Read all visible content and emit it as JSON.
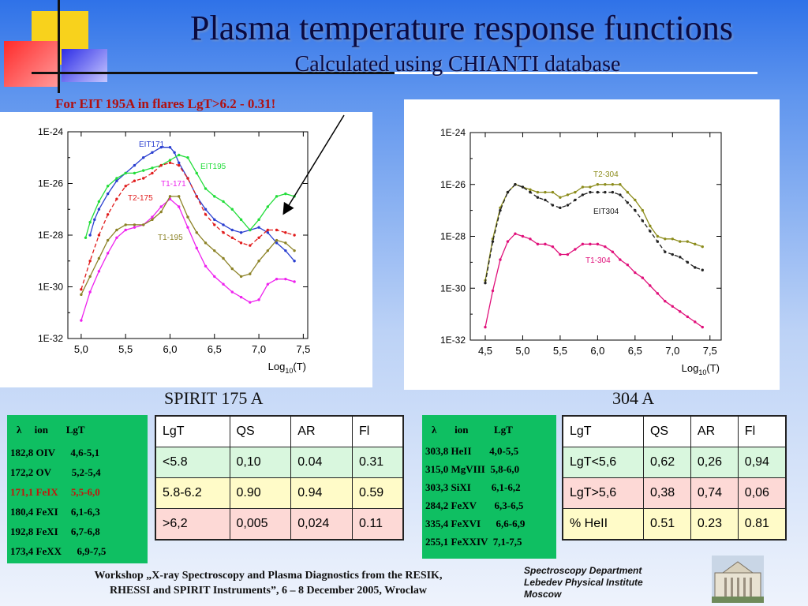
{
  "slide": {
    "title": "Plasma temperature response functions",
    "subtitle": "Calculated using CHIANTI database",
    "annotation": "For EIT 195A in flares   LgT>6.2  -   0.31!",
    "caption_left": "SPIRIT 175 A",
    "caption_right": "304 A",
    "footer_left_line1": "Workshop „X-ray Spectroscopy and Plasma Diagnostics from the RESIK,",
    "footer_left_line2": "RHESSI and SPIRIT Instruments”, 6 – 8 December 2005, Wroclaw",
    "footer_right_line1": "Spectroscopy Department",
    "footer_right_line2": "Lebedev Physical Institute",
    "footer_right_line3": "Moscow",
    "colors": {
      "accent_red": "#b01010",
      "box_green": "#0fbf62",
      "row_green": "#d9f7de",
      "row_yellow": "#fffbc8",
      "row_pink": "#fdd9d6"
    }
  },
  "left_lines": {
    "header": "λ     ion       LgT",
    "rows": [
      "182,8 OIV      4,6-5,1",
      "172,2 OV        5,2-5,4",
      "171,1 FeIX     5,5-6,0",
      "180,4 FeXI     6,1-6,3",
      "192,8 FeXI     6,7-6,8",
      "173,4 FeXX      6,9-7,5"
    ],
    "highlight_index": 2
  },
  "right_lines": {
    "header": "λ       ion          LgT",
    "rows": [
      "303,8 HeII       4,0-5,5",
      "315,0 MgVIII  5,8-6,0",
      "303,3 SiXI        6,1-6,2",
      "284,2 FeXV       6,3-6,5",
      "335,4 FeXVI      6,6-6,9",
      "255,1 FeXXIV  7,1-7,5"
    ]
  },
  "table_left": {
    "header": [
      "LgT",
      "QS",
      "AR",
      "Fl"
    ],
    "rows": [
      [
        "<5.8",
        "0,10",
        "0.04",
        "0.31"
      ],
      [
        "5.8-6.2",
        "0.90",
        "0.94",
        "0.59"
      ],
      [
        ">6,2",
        "0,005",
        "0,024",
        "0.11"
      ]
    ]
  },
  "table_right": {
    "header": [
      "LgT",
      "QS",
      "AR",
      "Fl"
    ],
    "rows": [
      [
        "LgT<5,6",
        "0,62",
        "0,26",
        "0,94"
      ],
      [
        "LgT>5,6",
        "0,38",
        "0,74",
        "0,06"
      ],
      [
        "% HeII",
        "0.51",
        "0.23",
        "0.81"
      ]
    ]
  },
  "chart_data": [
    {
      "type": "line",
      "xlabel": "Log10(T)",
      "xlim": [
        4.85,
        7.55
      ],
      "ylim": [
        -32,
        -24
      ],
      "y_log_scale": true,
      "x_ticks": [
        "5,0",
        "5,5",
        "6,0",
        "6,5",
        "7,0",
        "7,5"
      ],
      "x_tick_values": [
        5.0,
        5.5,
        6.0,
        6.5,
        7.0,
        7.5
      ],
      "y_ticks": [
        "1E-24",
        "1E-26",
        "1E-28",
        "1E-30",
        "1E-32"
      ],
      "y_tick_values": [
        -24,
        -26,
        -28,
        -30,
        -32
      ],
      "grid": false,
      "series": [
        {
          "name": "EIT171",
          "color": "#2a3fd0",
          "dash": false,
          "x": [
            5.1,
            5.15,
            5.2,
            5.3,
            5.4,
            5.5,
            5.6,
            5.7,
            5.8,
            5.9,
            6.0,
            6.05,
            6.1,
            6.2,
            6.3,
            6.4,
            6.5,
            6.6,
            6.7,
            6.8,
            6.9,
            7.0,
            7.1,
            7.2,
            7.3,
            7.4
          ],
          "y": [
            -28.0,
            -27.4,
            -27.0,
            -26.4,
            -25.9,
            -25.6,
            -25.3,
            -25.0,
            -24.8,
            -24.6,
            -24.6,
            -24.8,
            -25.2,
            -25.8,
            -26.5,
            -27.0,
            -27.4,
            -27.6,
            -27.8,
            -27.9,
            -27.8,
            -27.7,
            -27.9,
            -28.3,
            -28.6,
            -29.0
          ]
        },
        {
          "name": "EIT195",
          "color": "#22dd3a",
          "dash": false,
          "x": [
            5.05,
            5.1,
            5.2,
            5.3,
            5.4,
            5.5,
            5.6,
            5.7,
            5.8,
            5.9,
            6.0,
            6.1,
            6.2,
            6.3,
            6.4,
            6.5,
            6.6,
            6.7,
            6.8,
            6.9,
            7.0,
            7.1,
            7.2,
            7.3,
            7.4
          ],
          "y": [
            -28.1,
            -27.5,
            -26.7,
            -26.1,
            -25.8,
            -25.6,
            -25.6,
            -25.5,
            -25.4,
            -25.3,
            -25.1,
            -24.9,
            -25.0,
            -25.6,
            -26.2,
            -26.5,
            -26.7,
            -27.0,
            -27.4,
            -27.8,
            -27.4,
            -26.9,
            -26.5,
            -26.4,
            -26.5
          ]
        },
        {
          "name": "T2-175",
          "color": "#e11c1c",
          "dash": true,
          "x": [
            5.0,
            5.1,
            5.2,
            5.3,
            5.4,
            5.5,
            5.6,
            5.7,
            5.8,
            5.9,
            6.0,
            6.1,
            6.2,
            6.3,
            6.4,
            6.5,
            6.6,
            6.7,
            6.8,
            6.9,
            7.0,
            7.1,
            7.2,
            7.3,
            7.4
          ],
          "y": [
            -30.1,
            -29.0,
            -28.0,
            -27.2,
            -26.6,
            -26.1,
            -25.9,
            -25.8,
            -25.6,
            -25.3,
            -25.2,
            -25.3,
            -25.8,
            -26.5,
            -27.2,
            -27.6,
            -27.9,
            -28.1,
            -28.3,
            -28.4,
            -28.1,
            -27.8,
            -27.8,
            -27.9,
            -28.0
          ]
        },
        {
          "name": "T1-171",
          "color": "#ee22ee",
          "dash": false,
          "x": [
            5.0,
            5.1,
            5.2,
            5.3,
            5.4,
            5.5,
            5.6,
            5.7,
            5.8,
            5.9,
            6.0,
            6.1,
            6.2,
            6.3,
            6.4,
            6.5,
            6.6,
            6.7,
            6.8,
            6.9,
            7.0,
            7.1,
            7.2,
            7.3,
            7.4
          ],
          "y": [
            -31.3,
            -30.2,
            -29.4,
            -28.7,
            -28.1,
            -27.8,
            -27.7,
            -27.6,
            -27.3,
            -26.9,
            -26.6,
            -26.9,
            -27.7,
            -28.5,
            -29.2,
            -29.6,
            -29.9,
            -30.2,
            -30.4,
            -30.6,
            -30.5,
            -29.9,
            -29.7,
            -29.7,
            -29.8
          ]
        },
        {
          "name": "T1-195",
          "color": "#8c8226",
          "dash": false,
          "x": [
            5.0,
            5.1,
            5.2,
            5.3,
            5.4,
            5.5,
            5.6,
            5.7,
            5.8,
            5.9,
            6.0,
            6.1,
            6.2,
            6.3,
            6.4,
            6.5,
            6.6,
            6.7,
            6.8,
            6.9,
            7.0,
            7.1,
            7.2,
            7.3,
            7.4
          ],
          "y": [
            -30.3,
            -29.6,
            -28.9,
            -28.2,
            -27.8,
            -27.6,
            -27.6,
            -27.6,
            -27.4,
            -27.1,
            -26.5,
            -26.5,
            -27.3,
            -27.9,
            -28.3,
            -28.6,
            -28.9,
            -29.3,
            -29.6,
            -29.5,
            -29.0,
            -28.6,
            -28.2,
            -28.3,
            -28.6
          ]
        }
      ]
    },
    {
      "type": "line",
      "xlabel": "Log10(T)",
      "xlim": [
        4.3,
        7.65
      ],
      "ylim": [
        -32,
        -24
      ],
      "y_log_scale": true,
      "x_ticks": [
        "4,5",
        "5,0",
        "5,5",
        "6,0",
        "6,5",
        "7,0",
        "7,5"
      ],
      "x_tick_values": [
        4.5,
        5.0,
        5.5,
        6.0,
        6.5,
        7.0,
        7.5
      ],
      "y_ticks": [
        "1E-24",
        "1E-26",
        "1E-28",
        "1E-30",
        "1E-32"
      ],
      "y_tick_values": [
        -24,
        -26,
        -28,
        -30,
        -32
      ],
      "grid": false,
      "series": [
        {
          "name": "T2-304",
          "color": "#8c8c1c",
          "dash": false,
          "x": [
            4.5,
            4.6,
            4.7,
            4.8,
            4.9,
            5.0,
            5.1,
            5.2,
            5.3,
            5.4,
            5.5,
            5.6,
            5.7,
            5.8,
            5.9,
            6.0,
            6.1,
            6.2,
            6.3,
            6.4,
            6.5,
            6.6,
            6.7,
            6.8,
            6.9,
            7.0,
            7.1,
            7.2,
            7.3,
            7.4
          ],
          "y": [
            -29.7,
            -28.1,
            -26.9,
            -26.3,
            -26.0,
            -26.1,
            -26.2,
            -26.3,
            -26.3,
            -26.3,
            -26.5,
            -26.4,
            -26.3,
            -26.1,
            -26.1,
            -26.0,
            -26.0,
            -26.0,
            -26.0,
            -26.3,
            -26.6,
            -27.0,
            -27.6,
            -28.0,
            -28.1,
            -28.1,
            -28.2,
            -28.2,
            -28.3,
            -28.4
          ]
        },
        {
          "name": "EIT304",
          "color": "#222222",
          "dash": true,
          "x": [
            4.5,
            4.6,
            4.7,
            4.8,
            4.9,
            5.0,
            5.1,
            5.2,
            5.3,
            5.4,
            5.5,
            5.6,
            5.7,
            5.8,
            5.9,
            6.0,
            6.1,
            6.2,
            6.3,
            6.4,
            6.5,
            6.6,
            6.7,
            6.8,
            6.9,
            7.0,
            7.1,
            7.2,
            7.3,
            7.4
          ],
          "y": [
            -29.8,
            -28.2,
            -27.0,
            -26.3,
            -26.0,
            -26.1,
            -26.3,
            -26.5,
            -26.6,
            -26.8,
            -26.9,
            -26.8,
            -26.6,
            -26.4,
            -26.3,
            -26.3,
            -26.3,
            -26.3,
            -26.4,
            -26.7,
            -27.0,
            -27.4,
            -27.8,
            -28.2,
            -28.6,
            -28.7,
            -28.8,
            -29.0,
            -29.2,
            -29.3
          ]
        },
        {
          "name": "T1-304",
          "color": "#e0107a",
          "dash": false,
          "x": [
            4.5,
            4.6,
            4.7,
            4.8,
            4.9,
            5.0,
            5.1,
            5.2,
            5.3,
            5.4,
            5.5,
            5.6,
            5.7,
            5.8,
            5.9,
            6.0,
            6.1,
            6.2,
            6.3,
            6.4,
            6.5,
            6.6,
            6.7,
            6.8,
            6.9,
            7.0,
            7.1,
            7.2,
            7.3,
            7.4
          ],
          "y": [
            -31.5,
            -30.1,
            -28.9,
            -28.2,
            -27.9,
            -28.0,
            -28.1,
            -28.3,
            -28.3,
            -28.4,
            -28.7,
            -28.7,
            -28.5,
            -28.3,
            -28.3,
            -28.3,
            -28.4,
            -28.6,
            -28.9,
            -29.1,
            -29.4,
            -29.6,
            -29.9,
            -30.2,
            -30.5,
            -30.7,
            -30.9,
            -31.1,
            -31.3,
            -31.5
          ]
        }
      ]
    }
  ]
}
